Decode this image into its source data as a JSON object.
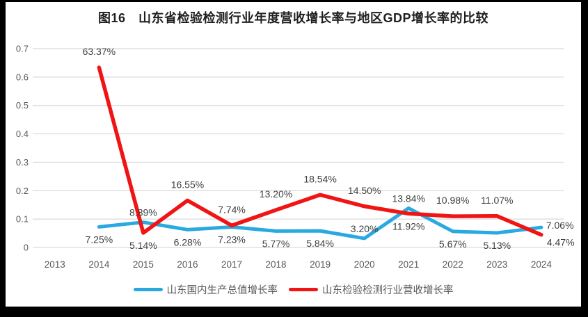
{
  "title": "图16　山东省检验检测行业年度营收增长率与地区GDP增长率的比较",
  "chart_data": {
    "type": "line",
    "title": "图16　山东省检验检测行业年度营收增长率与地区GDP增长率的比较",
    "x": [
      "2013",
      "2014",
      "2015",
      "2016",
      "2017",
      "2018",
      "2019",
      "2020",
      "2021",
      "2022",
      "2023",
      "2024"
    ],
    "ylim": [
      0,
      0.7
    ],
    "yticks": [
      "0",
      "0.1",
      "0.2",
      "0.3",
      "0.4",
      "0.5",
      "0.6",
      "0.7"
    ],
    "grid": true,
    "legend_position": "bottom",
    "grid_color": "#D9D9D9",
    "tick_color": "#595959",
    "label_color": "#404040",
    "series": [
      {
        "id": "gdp",
        "name": "山东国内生产总值增长率",
        "color": "#29A9E0",
        "values": [
          null,
          0.0725,
          0.0889,
          0.0628,
          0.0723,
          0.0577,
          0.0584,
          0.032,
          0.1384,
          0.0567,
          0.0513,
          0.0706
        ],
        "labels": [
          null,
          {
            "text": "7.25%",
            "pos": "below"
          },
          {
            "text": "8.89%",
            "pos": "above"
          },
          {
            "text": "6.28%",
            "pos": "below"
          },
          {
            "text": "7.23%",
            "pos": "below"
          },
          {
            "text": "5.77%",
            "pos": "below"
          },
          {
            "text": "5.84%",
            "pos": "below"
          },
          {
            "text": "3.20%",
            "pos": "above"
          },
          {
            "text": "13.84%",
            "pos": "above"
          },
          {
            "text": "5.67%",
            "pos": "below"
          },
          {
            "text": "5.13%",
            "pos": "below"
          },
          {
            "text": "7.06%",
            "pos": "right"
          }
        ]
      },
      {
        "id": "industry",
        "name": "山东检验检测行业营收增长率",
        "color": "#F01414",
        "values": [
          null,
          0.6337,
          0.0514,
          0.1655,
          0.0774,
          0.132,
          0.1854,
          0.145,
          0.1192,
          0.1098,
          0.1107,
          0.0447
        ],
        "labels": [
          null,
          {
            "text": "63.37%",
            "pos": "above"
          },
          {
            "text": "5.14%",
            "pos": "below"
          },
          {
            "text": "16.55%",
            "pos": "above"
          },
          {
            "text": "7.74%",
            "pos": "above"
          },
          {
            "text": "13.20%",
            "pos": "above"
          },
          {
            "text": "18.54%",
            "pos": "above"
          },
          {
            "text": "14.50%",
            "pos": "above"
          },
          {
            "text": "11.92%",
            "pos": "below"
          },
          {
            "text": "10.98%",
            "pos": "above"
          },
          {
            "text": "11.07%",
            "pos": "above"
          },
          {
            "text": "4.47%",
            "pos": "right-below"
          }
        ]
      }
    ]
  }
}
